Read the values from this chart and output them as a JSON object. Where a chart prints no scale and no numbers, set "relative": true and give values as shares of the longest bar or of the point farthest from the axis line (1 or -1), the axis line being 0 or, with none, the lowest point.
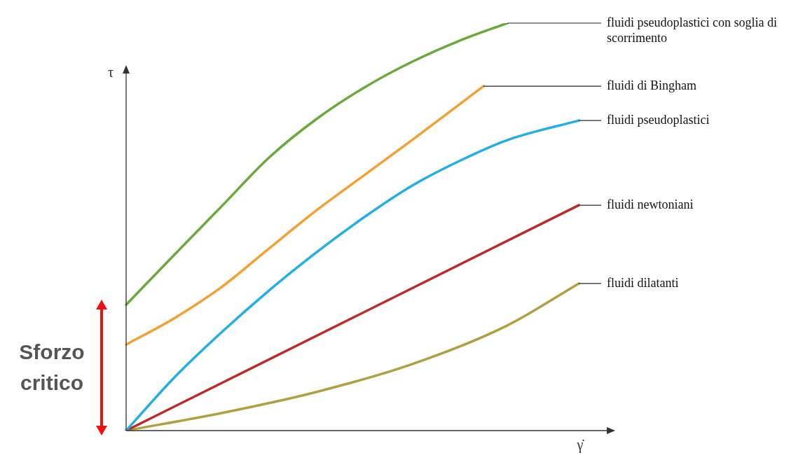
{
  "chart_data": {
    "type": "line",
    "relative": true,
    "xlabel": "γ̇",
    "ylabel": "τ",
    "legend": false,
    "grid": false,
    "marker": "none",
    "line_style": "solid",
    "categories": [
      null,
      null,
      null,
      null,
      null,
      null,
      null,
      null,
      null,
      null,
      null,
      null,
      null,
      null,
      null,
      null,
      null,
      null,
      null,
      null,
      null
    ],
    "annotations": [
      "Sforzo critico"
    ],
    "series": [
      {
        "name": "fluidi pseudoplastici con soglia di scorrimento",
        "color": "#6aaa3a",
        "values": [
          0.309,
          null,
          0.43,
          null,
          0.55,
          null,
          0.67,
          null,
          0.765,
          null,
          0.842,
          null,
          0.905,
          null,
          0.957,
          null,
          1,
          null,
          null,
          null,
          null
        ]
      },
      {
        "name": "fluidi di Bingham",
        "color": "#f5a030",
        "values": [
          0.211,
          null,
          0.275,
          null,
          0.352,
          null,
          0.447,
          null,
          0.541,
          null,
          0.627,
          null,
          0.713,
          null,
          null,
          0.845,
          null,
          null,
          null,
          null,
          null
        ]
      },
      {
        "name": "fluidi pseudoplastici",
        "color": "#20b0e8",
        "values": [
          0,
          null,
          0.129,
          null,
          0.241,
          null,
          0.344,
          null,
          0.438,
          null,
          0.524,
          null,
          0.601,
          null,
          0.662,
          null,
          0.713,
          null,
          null,
          0.761,
          null
        ]
      },
      {
        "name": "fluidi newtoniani",
        "color": "#c0282a",
        "values": [
          0,
          null,
          null,
          null,
          null,
          null,
          null,
          null,
          null,
          null,
          null,
          null,
          null,
          null,
          null,
          null,
          null,
          null,
          null,
          0.553,
          null
        ]
      },
      {
        "name": "fluidi dilatanti",
        "color": "#b0a040",
        "values": [
          0,
          null,
          null,
          null,
          0.043,
          null,
          null,
          null,
          0.095,
          null,
          null,
          null,
          0.163,
          null,
          null,
          null,
          0.258,
          null,
          null,
          0.361,
          null
        ]
      }
    ]
  }
}
